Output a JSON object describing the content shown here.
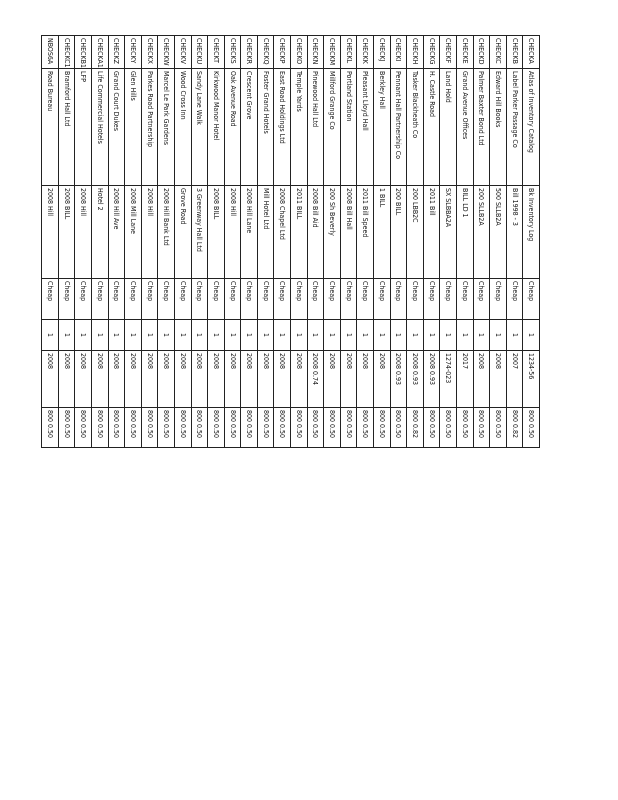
{
  "table": {
    "rows": [
      [
        "CHECKA",
        "Atlas of Inventory Catalog",
        "Bk Inventory Log",
        "Cheap",
        "1",
        "1234-56",
        "800 0.50"
      ],
      [
        "CHECKB",
        "Label Parker Passage Co",
        "Bill 1998 - 3",
        "Cheap",
        "1",
        "2007",
        "800 0.82"
      ],
      [
        "CHECKC",
        "Edward Hill Books",
        "500 SLLB2A",
        "Cheap",
        "1",
        "2008",
        "800 0.50"
      ],
      [
        "CHECKD",
        "Palmer Baxter Bond Ltd",
        "200 SLLB2A",
        "Cheap",
        "1",
        "2008",
        "800 0.50"
      ],
      [
        "CHECKE",
        "Grand Avenue Offices",
        "BILL LD 1",
        "Cheap",
        "1",
        "2017",
        "800 0.50"
      ],
      [
        "CHECKF",
        "Land Hold",
        "SX SLBBA2A",
        "Cheap",
        "1",
        "1274-023",
        "800 0.50"
      ],
      [
        "CHECKG",
        "H. Castle Road",
        "2011 Bill",
        "Cheap",
        "1",
        "2008 0.93",
        "800 0.50"
      ],
      [
        "CHECKH",
        "Tasker Blackheath Co",
        "200 LBB2C",
        "Cheap",
        "1",
        "2008 0.93",
        "800 0.82"
      ],
      [
        "CHECKI",
        "Pennant Hall Partnership Co",
        "200 BILL",
        "Cheap",
        "1",
        "2008 0.93",
        "800 0.50"
      ],
      [
        "CHECKJ",
        "Berkley Hall",
        "1 BILL",
        "Cheap",
        "1",
        "2008",
        "800 0.50"
      ],
      [
        "CHECKK",
        "Pleasant Lloyd Hall",
        "2011 Bill Speed",
        "Cheap",
        "1",
        "2008",
        "800 0.50"
      ],
      [
        "CHECKL",
        "Portland Station",
        "2008 Bill Hall",
        "Cheap",
        "1",
        "2008",
        "800 0.50"
      ],
      [
        "CHECKM",
        "Millford Grange Co",
        "200 Sh Beverly",
        "Cheap",
        "1",
        "2008",
        "800 0.50"
      ],
      [
        "CHECKN",
        "Pinewood Hall Ltd",
        "2008 Bill Aid",
        "Cheap",
        "1",
        "2008 0.74",
        "800 0.50"
      ],
      [
        "CHECKO",
        "Temple Yards",
        "2011 BILL",
        "Cheap",
        "1",
        "2008",
        "800 0.50"
      ],
      [
        "CHECKP",
        "East Road Holdings Ltd",
        "2008 Chapel Ltd",
        "Cheap",
        "1",
        "2008",
        "800 0.50"
      ],
      [
        "CHECKQ",
        "Foster Grand Hotels",
        "Mill Hotel Ltd",
        "Cheap",
        "1",
        "2008",
        "800 0.50"
      ],
      [
        "CHECKR",
        "Crescent Grove",
        "2008 Hill Lane",
        "Cheap",
        "1",
        "2008",
        "800 0.50"
      ],
      [
        "CHECKS",
        "Oak Avenue Road",
        "2008 Hill",
        "Cheap",
        "1",
        "2008",
        "800 0.50"
      ],
      [
        "CHECKT",
        "Kirkwood Manor Hotel",
        "2008 BILL",
        "Cheap",
        "1",
        "2008",
        "800 0.50"
      ],
      [
        "CHECKU",
        "Sandy Lane Walk",
        "3 Greenway Hall Ltd",
        "Cheap",
        "1",
        "2008",
        "800 0.50"
      ],
      [
        "CHECKV",
        "Wood Cross Inn",
        "Grove Road",
        "Cheap",
        "1",
        "2008",
        "800 0.50"
      ],
      [
        "CHECKW",
        "Marcel Le Park Gardens",
        "2008 Hill Bank Ltd",
        "Cheap",
        "1",
        "2008",
        "800 0.50"
      ],
      [
        "CHECKX",
        "Parkes Road Partnership",
        "2008 Hill",
        "Cheap",
        "1",
        "2008",
        "800 0.50"
      ],
      [
        "CHECKY",
        "Glen Hills",
        "2008 Mill Lane",
        "Cheap",
        "1",
        "2008",
        "800 0.50"
      ],
      [
        "CHECKZ",
        "Grand Court Dukes",
        "2008 Hill Ave",
        "Cheap",
        "1",
        "2008",
        "800 0.50"
      ],
      [
        "CHECKA1",
        "Life Commercial Hotels",
        "Hotel 2",
        "Cheap",
        "1",
        "2008",
        "800 0.50"
      ],
      [
        "CHECKB1",
        "LFP",
        "2008 Hill",
        "Cheap",
        "1",
        "2008",
        "800 0.50"
      ],
      [
        "CHECKC1",
        "Bramford Hall Ltd",
        "2008 BILL",
        "Cheap",
        "1",
        "2008",
        "800 0.50"
      ],
      [
        "NBOS6A",
        "Road Bureau",
        "2008 Hill",
        "Cheap",
        "1",
        "2008",
        "800 0.50"
      ]
    ]
  }
}
